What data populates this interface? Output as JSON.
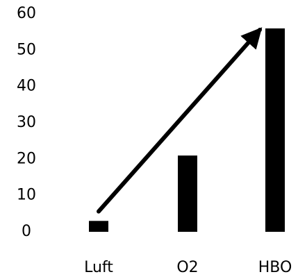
{
  "chart_data": {
    "type": "bar",
    "categories": [
      "Luft",
      "O2",
      "HBO"
    ],
    "values": [
      3,
      21,
      56
    ],
    "ylim": [
      0,
      60
    ],
    "yticks": [
      "0",
      "10",
      "20",
      "30",
      "40",
      "50",
      "60"
    ],
    "grid": false,
    "legend": "none",
    "bar_color": "#000000",
    "annotations": [
      {
        "type": "arrow",
        "from": {
          "x": "Luft",
          "y": 6
        },
        "to": {
          "x": "HBO",
          "y": 56
        }
      }
    ]
  }
}
